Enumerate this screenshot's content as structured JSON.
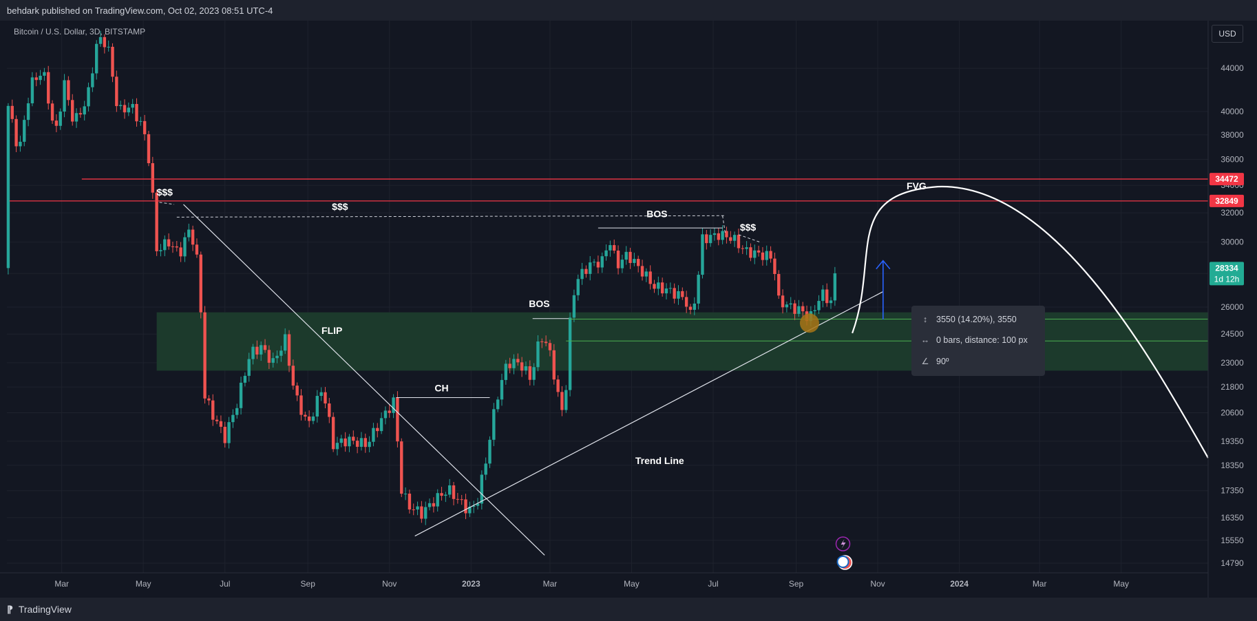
{
  "header": {
    "text": "behdark published on TradingView.com, Oct 02, 2023 08:51 UTC-4"
  },
  "footer": {
    "brand": "TradingView"
  },
  "currency": "USD",
  "chart_data": {
    "type": "candlestick",
    "title": "Bitcoin / U.S. Dollar, 3D, BITSTAMP",
    "y_ticks": [
      44000,
      40000,
      38000,
      36000,
      34000,
      32000,
      30000,
      28000,
      26000,
      24500,
      23000,
      21800,
      20600,
      19350,
      18350,
      17350,
      16350,
      15550,
      14790
    ],
    "y_range": [
      14500,
      48500
    ],
    "x_ticks": [
      {
        "label": "Mar",
        "date": "2022-03-01"
      },
      {
        "label": "May",
        "date": "2022-05-01"
      },
      {
        "label": "Jul",
        "date": "2022-07-01"
      },
      {
        "label": "Sep",
        "date": "2022-09-01"
      },
      {
        "label": "Nov",
        "date": "2022-11-01"
      },
      {
        "label": "2023",
        "date": "2023-01-01"
      },
      {
        "label": "Mar",
        "date": "2023-03-01"
      },
      {
        "label": "May",
        "date": "2023-05-01"
      },
      {
        "label": "Jul",
        "date": "2023-07-01"
      },
      {
        "label": "Sep",
        "date": "2023-09-01"
      },
      {
        "label": "Nov",
        "date": "2023-11-01"
      },
      {
        "label": "2024",
        "date": "2024-01-01"
      },
      {
        "label": "Mar",
        "date": "2024-03-01"
      },
      {
        "label": "May",
        "date": "2024-05-01"
      }
    ],
    "x_range": [
      "2022-01-19",
      "2024-07-05"
    ],
    "price_anchors": [
      [
        "2022-01-20",
        40500
      ],
      [
        "2022-01-28",
        36500
      ],
      [
        "2022-02-06",
        42500
      ],
      [
        "2022-02-15",
        43800
      ],
      [
        "2022-02-24",
        37800
      ],
      [
        "2022-03-03",
        42500
      ],
      [
        "2022-03-10",
        39000
      ],
      [
        "2022-03-20",
        41000
      ],
      [
        "2022-03-28",
        47000
      ],
      [
        "2022-04-04",
        46500
      ],
      [
        "2022-04-12",
        40000
      ],
      [
        "2022-04-22",
        40500
      ],
      [
        "2022-05-01",
        38500
      ],
      [
        "2022-05-06",
        35500
      ],
      [
        "2022-05-11",
        29500
      ],
      [
        "2022-05-20",
        30000
      ],
      [
        "2022-05-28",
        29200
      ],
      [
        "2022-06-05",
        31000
      ],
      [
        "2022-06-12",
        28000
      ],
      [
        "2022-06-15",
        21500
      ],
      [
        "2022-06-22",
        20500
      ],
      [
        "2022-07-01",
        19500
      ],
      [
        "2022-07-10",
        21000
      ],
      [
        "2022-07-20",
        23500
      ],
      [
        "2022-07-28",
        23800
      ],
      [
        "2022-08-06",
        23000
      ],
      [
        "2022-08-15",
        24200
      ],
      [
        "2022-08-22",
        21500
      ],
      [
        "2022-09-01",
        20000
      ],
      [
        "2022-09-12",
        21800
      ],
      [
        "2022-09-20",
        19200
      ],
      [
        "2022-10-01",
        19400
      ],
      [
        "2022-10-15",
        19200
      ],
      [
        "2022-10-25",
        20200
      ],
      [
        "2022-11-05",
        21200
      ],
      [
        "2022-11-09",
        17500
      ],
      [
        "2022-11-15",
        16800
      ],
      [
        "2022-11-25",
        16500
      ],
      [
        "2022-12-05",
        17000
      ],
      [
        "2022-12-15",
        17400
      ],
      [
        "2022-12-30",
        16600
      ],
      [
        "2023-01-05",
        16800
      ],
      [
        "2023-01-12",
        18500
      ],
      [
        "2023-01-20",
        21200
      ],
      [
        "2023-01-28",
        23000
      ],
      [
        "2023-02-06",
        23000
      ],
      [
        "2023-02-15",
        22200
      ],
      [
        "2023-02-22",
        24500
      ],
      [
        "2023-03-01",
        23500
      ],
      [
        "2023-03-08",
        21000
      ],
      [
        "2023-03-12",
        20500
      ],
      [
        "2023-03-15",
        24500
      ],
      [
        "2023-03-20",
        27500
      ],
      [
        "2023-03-30",
        28500
      ],
      [
        "2023-04-10",
        28800
      ],
      [
        "2023-04-14",
        30300
      ],
      [
        "2023-04-20",
        28500
      ],
      [
        "2023-04-28",
        29200
      ],
      [
        "2023-05-08",
        28200
      ],
      [
        "2023-05-18",
        27200
      ],
      [
        "2023-05-28",
        27000
      ],
      [
        "2023-06-10",
        26500
      ],
      [
        "2023-06-15",
        25300
      ],
      [
        "2023-06-20",
        28000
      ],
      [
        "2023-06-23",
        30200
      ],
      [
        "2023-07-05",
        30500
      ],
      [
        "2023-07-15",
        30300
      ],
      [
        "2023-07-25",
        29400
      ],
      [
        "2023-08-05",
        29200
      ],
      [
        "2023-08-15",
        29000
      ],
      [
        "2023-08-18",
        26400
      ],
      [
        "2023-08-28",
        26000
      ],
      [
        "2023-09-05",
        25800
      ],
      [
        "2023-09-11",
        25300
      ],
      [
        "2023-09-20",
        26800
      ],
      [
        "2023-09-27",
        26300
      ],
      [
        "2023-10-01",
        28334
      ]
    ],
    "horizontal_lines": [
      {
        "price": 34472,
        "from": "2022-03-16",
        "color": "#f23645",
        "label": "34472"
      },
      {
        "price": 32849,
        "from": "2022-01-21",
        "color": "#f23645",
        "label": "32849"
      }
    ],
    "zones": [
      {
        "name": "FLIP",
        "from": "2022-05-11",
        "to": "2024-07-05",
        "low": 22600,
        "high": 25700,
        "color": "#1c3a2c"
      }
    ],
    "zone_lines": [
      {
        "price": 25320,
        "from": "2023-03-15",
        "to": "2024-07-05"
      },
      {
        "price": 24130,
        "from": "2023-03-13",
        "to": "2024-07-05"
      }
    ],
    "dashed_levels": [
      {
        "points": [
          [
            "2022-05-13",
            32750
          ],
          [
            "2022-05-24",
            32600
          ]
        ]
      },
      {
        "points": [
          [
            "2022-05-26",
            31700
          ],
          [
            "2023-07-10",
            31800
          ]
        ]
      },
      {
        "points": [
          [
            "2023-07-08",
            31800
          ],
          [
            "2023-07-10",
            30600
          ]
        ]
      },
      {
        "points": [
          [
            "2023-07-20",
            30500
          ],
          [
            "2023-08-05",
            30000
          ]
        ]
      }
    ],
    "structure_lines": [
      {
        "label": "CH",
        "price": 21300,
        "from": "2022-11-06",
        "to": "2023-01-15"
      },
      {
        "label": "BOS",
        "price": 25350,
        "from": "2023-02-16",
        "to": "2023-03-15"
      },
      {
        "label": "BOS",
        "price": 30950,
        "from": "2023-04-06",
        "to": "2023-07-08"
      }
    ],
    "trendlines": [
      {
        "label": "Trend Line",
        "from": [
          "2022-11-20",
          15700
        ],
        "to": [
          "2023-11-05",
          26900
        ]
      },
      {
        "label": "",
        "from": [
          "2022-05-31",
          32600
        ],
        "to": [
          "2023-02-25",
          15050
        ]
      }
    ],
    "projection_curve": [
      [
        "2023-10-13",
        24550
      ],
      [
        "2023-12-16",
        33900
      ],
      [
        "2024-07-05",
        18650
      ]
    ],
    "arrow": {
      "date": "2023-11-05",
      "from": 25300,
      "to": 28800,
      "color": "#2962ff"
    },
    "marker": {
      "date": "2023-09-11",
      "price": 25100,
      "color": "#a87516"
    },
    "annotations": [
      {
        "text": "$$$",
        "date": "2022-05-17",
        "price": 33250
      },
      {
        "text": "$$$",
        "date": "2022-09-25",
        "price": 32200
      },
      {
        "text": "FVG",
        "date": "2023-11-30",
        "price": 33700
      },
      {
        "text": "BOS",
        "date": "2023-05-20",
        "price": 31700
      },
      {
        "text": "$$$",
        "date": "2023-07-27",
        "price": 30780
      },
      {
        "text": "BOS",
        "date": "2023-02-21",
        "price": 26000
      },
      {
        "text": "FLIP",
        "date": "2022-09-19",
        "price": 24500
      },
      {
        "text": "CH",
        "date": "2022-12-10",
        "price": 21600
      },
      {
        "text": "Trend Line",
        "date": "2023-05-22",
        "price": 18400
      }
    ],
    "last_price": {
      "value": "28334",
      "countdown": "1d 12h",
      "color": "#22ab94"
    },
    "measure": {
      "line1": "3550 (14.20%), 3550",
      "line2": "0 bars, distance: 100 px",
      "line3": "90º"
    }
  }
}
